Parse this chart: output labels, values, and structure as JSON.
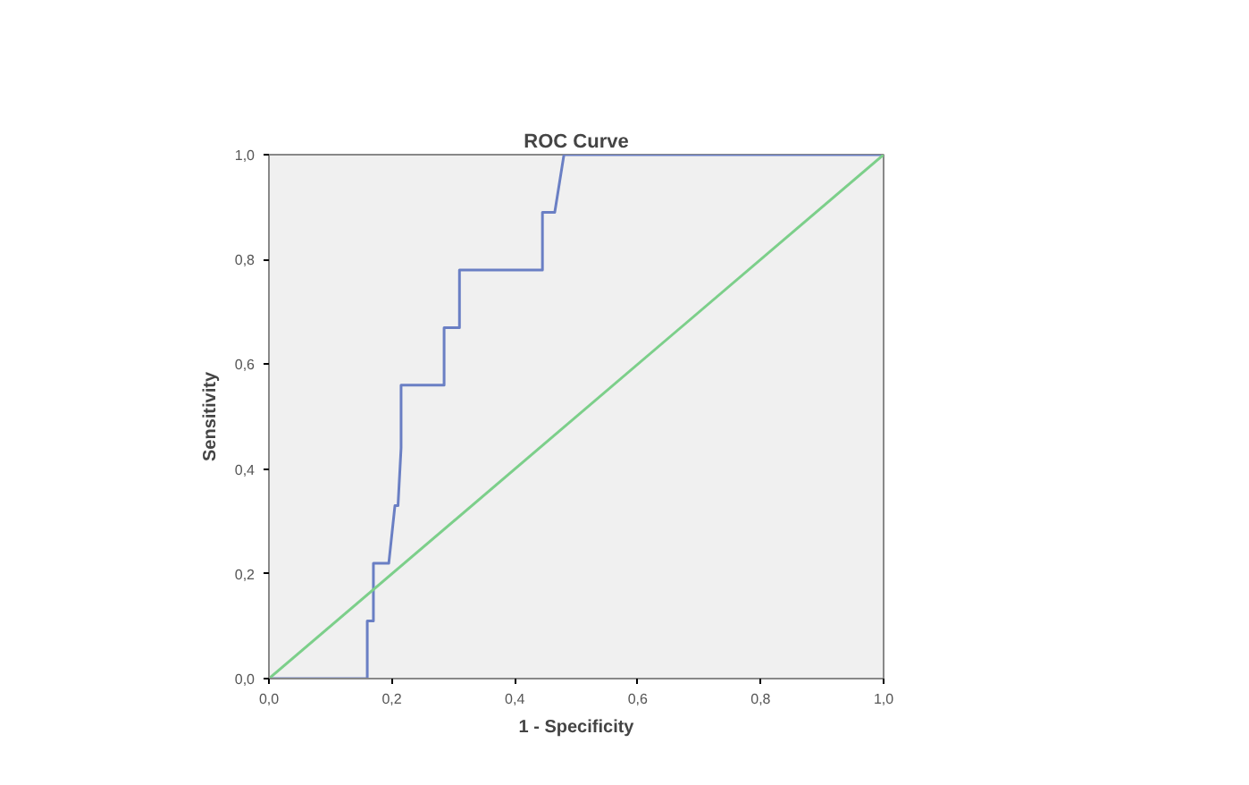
{
  "chart_data": {
    "type": "line",
    "title": "ROC Curve",
    "xlabel": "1 - Specificity",
    "ylabel": "Sensitivity",
    "xlim": [
      0,
      1
    ],
    "ylim": [
      0,
      1
    ],
    "xticks": [
      {
        "value": 0,
        "label": "0,0"
      },
      {
        "value": 0.2,
        "label": "0,2"
      },
      {
        "value": 0.4,
        "label": "0,4"
      },
      {
        "value": 0.6,
        "label": "0,6"
      },
      {
        "value": 0.8,
        "label": "0,8"
      },
      {
        "value": 1,
        "label": "1,0"
      }
    ],
    "yticks": [
      {
        "value": 0,
        "label": "0,0"
      },
      {
        "value": 0.2,
        "label": "0,2"
      },
      {
        "value": 0.4,
        "label": "0,4"
      },
      {
        "value": 0.6,
        "label": "0,6"
      },
      {
        "value": 0.8,
        "label": "0,8"
      },
      {
        "value": 1,
        "label": "1,0"
      }
    ],
    "grid": false,
    "series": [
      {
        "color": "#6a7fc4",
        "x": [
          0,
          0.16,
          0.16,
          0.17,
          0.17,
          0.195,
          0.205,
          0.21,
          0.215,
          0.215,
          0.285,
          0.285,
          0.31,
          0.31,
          0.445,
          0.445,
          0.465,
          0.48,
          1
        ],
        "values": [
          0,
          0,
          0.11,
          0.11,
          0.22,
          0.22,
          0.33,
          0.33,
          0.44,
          0.56,
          0.56,
          0.67,
          0.67,
          0.78,
          0.78,
          0.89,
          0.89,
          1,
          1
        ]
      },
      {
        "color": "#7ccf8a",
        "x": [
          0,
          1
        ],
        "values": [
          0,
          1
        ]
      }
    ]
  }
}
